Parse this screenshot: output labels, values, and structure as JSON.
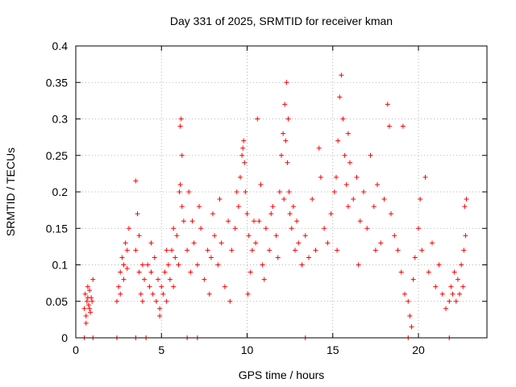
{
  "chart_data": {
    "type": "scatter",
    "title": "Day 331 of 2025, SRMTID for receiver kman",
    "xlabel": "GPS time / hours",
    "ylabel": "SRMTID / TECUs",
    "xlim": [
      0,
      24
    ],
    "ylim": [
      0,
      0.4
    ],
    "xticks": [
      0,
      5,
      10,
      15,
      20
    ],
    "xtick_labels": [
      "0",
      "5",
      "10",
      "15",
      "20"
    ],
    "yticks": [
      0,
      0.05,
      0.1,
      0.15,
      0.2,
      0.25,
      0.3,
      0.35,
      0.4
    ],
    "ytick_labels": [
      "0",
      "0.05",
      "0.1",
      "0.15",
      "0.2",
      "0.25",
      "0.3",
      "0.35",
      "0.4"
    ],
    "grid": true,
    "marker": "plus",
    "marker_color": "#ff0000",
    "series": [
      {
        "name": "SRMTID",
        "points": [
          [
            0.5,
            0.04
          ],
          [
            0.55,
            0.06
          ],
          [
            0.6,
            0.03
          ],
          [
            0.65,
            0.05
          ],
          [
            0.7,
            0.07
          ],
          [
            0.75,
            0.045
          ],
          [
            0.8,
            0.065
          ],
          [
            0.85,
            0.035
          ],
          [
            0.9,
            0.055
          ],
          [
            0.95,
            0.05
          ],
          [
            1.0,
            0.08
          ],
          [
            0.6,
            0.02
          ],
          [
            0.7,
            0.055
          ],
          [
            0.8,
            0.04
          ],
          [
            2.4,
            0.05
          ],
          [
            2.5,
            0.07
          ],
          [
            2.6,
            0.09
          ],
          [
            2.7,
            0.11
          ],
          [
            2.8,
            0.1
          ],
          [
            2.9,
            0.13
          ],
          [
            3.0,
            0.12
          ],
          [
            3.1,
            0.15
          ],
          [
            2.6,
            0.06
          ],
          [
            2.8,
            0.08
          ],
          [
            3.0,
            0.095
          ],
          [
            3.5,
            0.12
          ],
          [
            3.6,
            0.17
          ],
          [
            3.7,
            0.09
          ],
          [
            3.8,
            0.06
          ],
          [
            3.9,
            0.1
          ],
          [
            4.0,
            0.08
          ],
          [
            3.5,
            0.215
          ],
          [
            3.7,
            0.14
          ],
          [
            3.9,
            0.05
          ],
          [
            4.2,
            0.1
          ],
          [
            4.3,
            0.07
          ],
          [
            4.4,
            0.09
          ],
          [
            4.5,
            0.06
          ],
          [
            4.6,
            0.11
          ],
          [
            4.7,
            0.05
          ],
          [
            4.8,
            0.08
          ],
          [
            4.9,
            0.04
          ],
          [
            5.0,
            0.07
          ],
          [
            5.1,
            0.06
          ],
          [
            5.2,
            0.09
          ],
          [
            5.3,
            0.05
          ],
          [
            5.4,
            0.1
          ],
          [
            5.5,
            0.08
          ],
          [
            5.6,
            0.12
          ],
          [
            5.7,
            0.07
          ],
          [
            5.8,
            0.11
          ],
          [
            5.9,
            0.14
          ],
          [
            6.0,
            0.1
          ],
          [
            4.4,
            0.13
          ],
          [
            4.9,
            0.03
          ],
          [
            5.3,
            0.12
          ],
          [
            5.7,
            0.15
          ],
          [
            6.05,
            0.2
          ],
          [
            6.1,
            0.29
          ],
          [
            6.15,
            0.3
          ],
          [
            6.2,
            0.25
          ],
          [
            6.3,
            0.16
          ],
          [
            6.1,
            0.21
          ],
          [
            6.2,
            0.18
          ],
          [
            6.5,
            0.12
          ],
          [
            6.7,
            0.09
          ],
          [
            6.9,
            0.13
          ],
          [
            7.1,
            0.1
          ],
          [
            7.3,
            0.15
          ],
          [
            7.5,
            0.08
          ],
          [
            7.7,
            0.12
          ],
          [
            7.9,
            0.11
          ],
          [
            8.1,
            0.14
          ],
          [
            8.3,
            0.1
          ],
          [
            8.5,
            0.13
          ],
          [
            8.7,
            0.07
          ],
          [
            8.9,
            0.16
          ],
          [
            9.1,
            0.12
          ],
          [
            6.6,
            0.2
          ],
          [
            7.2,
            0.18
          ],
          [
            7.8,
            0.06
          ],
          [
            8.4,
            0.19
          ],
          [
            9.0,
            0.05
          ],
          [
            6.8,
            0.16
          ],
          [
            8.0,
            0.17
          ],
          [
            9.3,
            0.15
          ],
          [
            9.4,
            0.2
          ],
          [
            9.5,
            0.18
          ],
          [
            9.6,
            0.22
          ],
          [
            9.7,
            0.25
          ],
          [
            9.8,
            0.27
          ],
          [
            9.9,
            0.2
          ],
          [
            10.0,
            0.17
          ],
          [
            10.1,
            0.14
          ],
          [
            10.2,
            0.09
          ],
          [
            10.3,
            0.12
          ],
          [
            10.4,
            0.16
          ],
          [
            9.75,
            0.26
          ],
          [
            9.85,
            0.24
          ],
          [
            10.05,
            0.06
          ],
          [
            10.5,
            0.13
          ],
          [
            10.7,
            0.16
          ],
          [
            10.9,
            0.1
          ],
          [
            11.1,
            0.15
          ],
          [
            11.3,
            0.12
          ],
          [
            11.5,
            0.18
          ],
          [
            11.7,
            0.14
          ],
          [
            11.9,
            0.2
          ],
          [
            10.6,
            0.3
          ],
          [
            10.8,
            0.21
          ],
          [
            11.0,
            0.08
          ],
          [
            11.4,
            0.17
          ],
          [
            11.8,
            0.11
          ],
          [
            12.0,
            0.25
          ],
          [
            12.1,
            0.28
          ],
          [
            12.2,
            0.32
          ],
          [
            12.3,
            0.35
          ],
          [
            12.4,
            0.3
          ],
          [
            12.25,
            0.27
          ],
          [
            12.35,
            0.24
          ],
          [
            12.15,
            0.19
          ],
          [
            12.45,
            0.2
          ],
          [
            12.5,
            0.17
          ],
          [
            12.6,
            0.15
          ],
          [
            12.7,
            0.18
          ],
          [
            12.8,
            0.12
          ],
          [
            12.9,
            0.16
          ],
          [
            13.0,
            0.13
          ],
          [
            13.2,
            0.1
          ],
          [
            13.4,
            0.14
          ],
          [
            13.6,
            0.11
          ],
          [
            13.8,
            0.19
          ],
          [
            14.0,
            0.12
          ],
          [
            14.2,
            0.26
          ],
          [
            14.3,
            0.22
          ],
          [
            14.5,
            0.15
          ],
          [
            14.7,
            0.13
          ],
          [
            14.9,
            0.17
          ],
          [
            15.1,
            0.2
          ],
          [
            15.2,
            0.22
          ],
          [
            15.3,
            0.27
          ],
          [
            15.4,
            0.33
          ],
          [
            15.5,
            0.36
          ],
          [
            15.6,
            0.3
          ],
          [
            15.7,
            0.25
          ],
          [
            15.8,
            0.21
          ],
          [
            15.9,
            0.18
          ],
          [
            16.0,
            0.24
          ],
          [
            16.2,
            0.19
          ],
          [
            16.4,
            0.22
          ],
          [
            16.6,
            0.16
          ],
          [
            16.8,
            0.2
          ],
          [
            17.0,
            0.15
          ],
          [
            17.2,
            0.25
          ],
          [
            17.4,
            0.18
          ],
          [
            17.6,
            0.21
          ],
          [
            17.8,
            0.13
          ],
          [
            18.0,
            0.19
          ],
          [
            18.2,
            0.32
          ],
          [
            18.3,
            0.29
          ],
          [
            18.4,
            0.17
          ],
          [
            18.6,
            0.14
          ],
          [
            15.25,
            0.12
          ],
          [
            15.9,
            0.28
          ],
          [
            16.5,
            0.1
          ],
          [
            17.5,
            0.12
          ],
          [
            18.8,
            0.12
          ],
          [
            19.0,
            0.09
          ],
          [
            19.2,
            0.06
          ],
          [
            19.4,
            0.05
          ],
          [
            19.5,
            0.03
          ],
          [
            19.6,
            0.015
          ],
          [
            19.7,
            0.08
          ],
          [
            19.8,
            0.11
          ],
          [
            20.0,
            0.15
          ],
          [
            20.2,
            0.12
          ],
          [
            20.4,
            0.22
          ],
          [
            20.6,
            0.09
          ],
          [
            20.8,
            0.13
          ],
          [
            21.0,
            0.07
          ],
          [
            21.2,
            0.1
          ],
          [
            21.4,
            0.06
          ],
          [
            21.6,
            0.04
          ],
          [
            19.1,
            0.29
          ],
          [
            20.1,
            0.19
          ],
          [
            21.8,
            0.05
          ],
          [
            21.9,
            0.07
          ],
          [
            22.0,
            0.06
          ],
          [
            22.1,
            0.09
          ],
          [
            22.2,
            0.05
          ],
          [
            22.3,
            0.08
          ],
          [
            22.4,
            0.06
          ],
          [
            22.5,
            0.1
          ],
          [
            22.6,
            0.07
          ],
          [
            22.7,
            0.18
          ],
          [
            22.8,
            0.19
          ],
          [
            22.75,
            0.14
          ],
          [
            22.65,
            0.12
          ],
          [
            0.5,
            0.0
          ],
          [
            1.0,
            0.0
          ],
          [
            2.4,
            0.0
          ],
          [
            3.5,
            0.0
          ],
          [
            4.1,
            0.0
          ],
          [
            6.5,
            0.0
          ],
          [
            7.1,
            0.0
          ],
          [
            13.4,
            0.0
          ],
          [
            19.4,
            0.0
          ],
          [
            21.8,
            0.0
          ]
        ]
      }
    ]
  }
}
